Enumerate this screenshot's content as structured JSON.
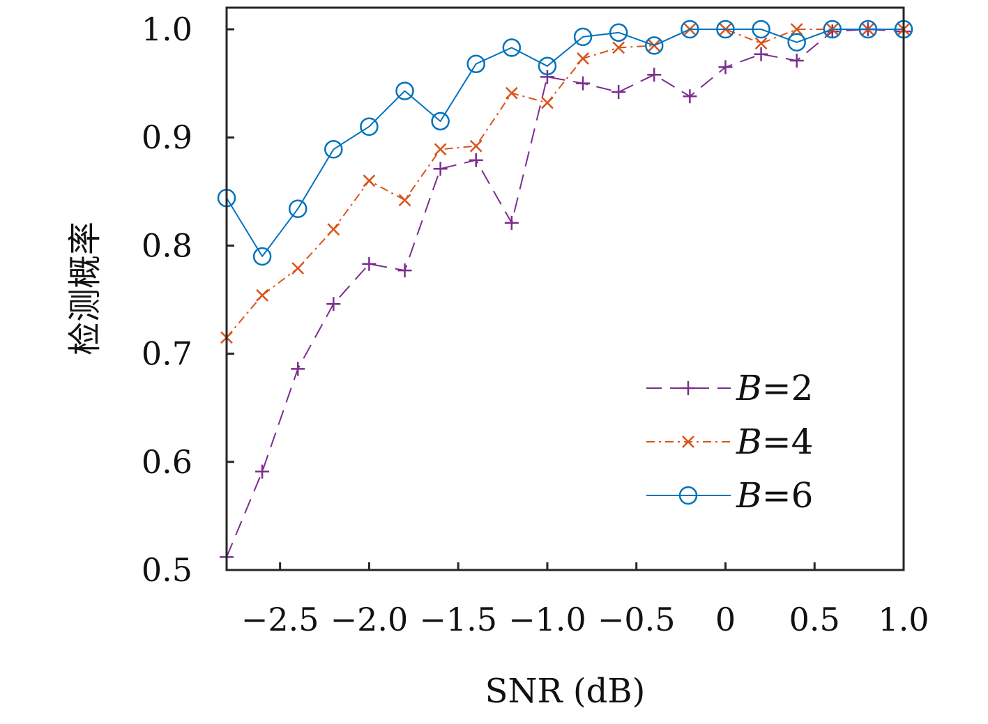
{
  "chart_data": {
    "type": "line",
    "xlabel": "SNR (dB)",
    "ylabel": "检测概率",
    "xlim": [
      -2.8,
      1.0
    ],
    "ylim": [
      0.5,
      1.02
    ],
    "x_ticks": [
      -2.5,
      -2.0,
      -1.5,
      -1.0,
      -0.5,
      0,
      0.5,
      1.0
    ],
    "x_tick_labels": [
      "−2.5",
      "−2.0",
      "−1.5",
      "−1.0",
      "−0.5",
      "0",
      "0.5",
      "1.0"
    ],
    "y_ticks": [
      0.5,
      0.6,
      0.7,
      0.8,
      0.9,
      1.0
    ],
    "y_tick_labels": [
      "0.5",
      "0.6",
      "0.7",
      "0.8",
      "0.9",
      "1.0"
    ],
    "grid": false,
    "legend_position": "bottom-right",
    "x": [
      -2.8,
      -2.6,
      -2.4,
      -2.2,
      -2.0,
      -1.8,
      -1.6,
      -1.4,
      -1.2,
      -1.0,
      -0.8,
      -0.6,
      -0.4,
      -0.2,
      0.0,
      0.2,
      0.4,
      0.6,
      0.8,
      1.0
    ],
    "series": [
      {
        "label_var": "B",
        "label_eq": "=2",
        "color": "#7B2D8E",
        "marker": "plus",
        "line_style": "dashed",
        "values": [
          0.512,
          0.591,
          0.686,
          0.746,
          0.783,
          0.777,
          0.871,
          0.879,
          0.821,
          0.956,
          0.95,
          0.942,
          0.958,
          0.938,
          0.965,
          0.977,
          0.971,
          0.998,
          1.0,
          0.998
        ]
      },
      {
        "label_var": "B",
        "label_eq": "=4",
        "color": "#D95319",
        "marker": "x",
        "line_style": "dash-dot",
        "values": [
          0.715,
          0.754,
          0.779,
          0.815,
          0.86,
          0.842,
          0.889,
          0.892,
          0.941,
          0.932,
          0.973,
          0.983,
          0.985,
          1.0,
          1.0,
          0.987,
          1.0,
          1.0,
          1.0,
          1.0
        ]
      },
      {
        "label_var": "B",
        "label_eq": "=6",
        "color": "#0072BD",
        "marker": "circle",
        "line_style": "solid",
        "values": [
          0.844,
          0.79,
          0.834,
          0.889,
          0.91,
          0.943,
          0.915,
          0.968,
          0.983,
          0.966,
          0.993,
          0.997,
          0.985,
          1.0,
          1.0,
          1.0,
          0.988,
          1.0,
          1.0,
          1.0
        ]
      }
    ]
  }
}
